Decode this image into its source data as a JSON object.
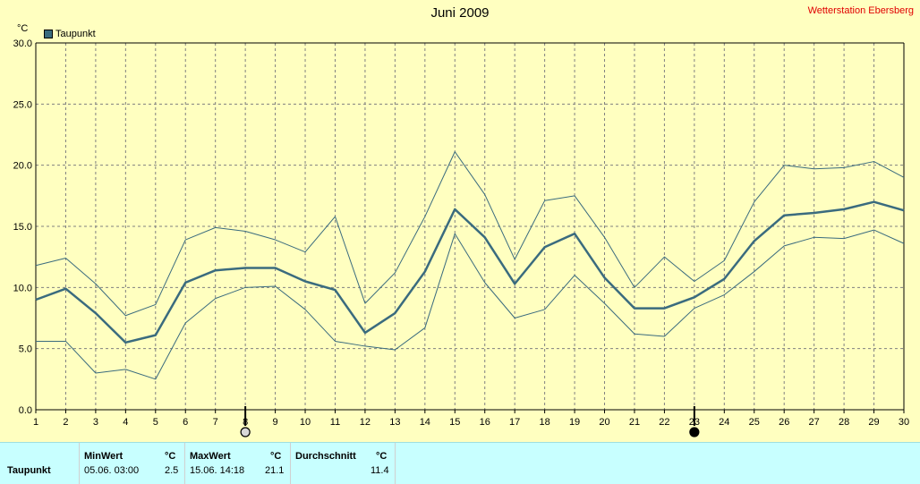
{
  "header": {
    "title": "Juni 2009",
    "station": "Wetterstation Ebersberg",
    "unit": "°C"
  },
  "chart_data": {
    "type": "line",
    "title": "Juni 2009",
    "ylabel": "°C",
    "ylim": [
      0,
      30
    ],
    "xlim": [
      1,
      30
    ],
    "yticks": [
      "0.0",
      "5.0",
      "10.0",
      "15.0",
      "20.0",
      "25.0",
      "30.0"
    ],
    "ytick_values": [
      0,
      5,
      10,
      15,
      20,
      25,
      30
    ],
    "x": [
      1,
      2,
      3,
      4,
      5,
      6,
      7,
      8,
      9,
      10,
      11,
      12,
      13,
      14,
      15,
      16,
      17,
      18,
      19,
      20,
      21,
      22,
      23,
      24,
      25,
      26,
      27,
      28,
      29,
      30
    ],
    "grid": true,
    "legend": "top-left",
    "series": [
      {
        "name": "Taupunkt",
        "role": "mean",
        "color": "#3a6b7e",
        "values": [
          9.0,
          9.9,
          7.9,
          5.5,
          6.1,
          10.4,
          11.4,
          11.6,
          11.6,
          10.5,
          9.8,
          6.3,
          7.9,
          11.3,
          16.4,
          14.1,
          10.3,
          13.3,
          14.4,
          10.8,
          8.3,
          8.3,
          9.2,
          10.7,
          13.8,
          15.9,
          16.1,
          16.4,
          17.0,
          16.3
        ]
      },
      {
        "role": "max",
        "color": "#3a6b7e",
        "values": [
          11.8,
          12.4,
          10.3,
          7.7,
          8.6,
          13.9,
          14.9,
          14.6,
          13.9,
          12.9,
          15.8,
          8.7,
          11.2,
          15.8,
          21.1,
          17.6,
          12.3,
          17.1,
          17.5,
          14.1,
          10.0,
          12.5,
          10.5,
          12.2,
          17.0,
          20.0,
          19.7,
          19.8,
          20.3,
          19.0
        ]
      },
      {
        "role": "min",
        "color": "#3a6b7e",
        "values": [
          5.6,
          5.6,
          3.0,
          3.3,
          2.5,
          7.1,
          9.1,
          10.0,
          10.1,
          8.2,
          5.6,
          5.2,
          4.9,
          6.7,
          14.4,
          10.4,
          7.5,
          8.2,
          11.0,
          8.7,
          6.2,
          6.0,
          8.3,
          9.4,
          11.3,
          13.4,
          14.1,
          14.0,
          14.7,
          13.6
        ]
      }
    ],
    "markers": [
      {
        "x": 8,
        "type": "full-moon-icon"
      },
      {
        "x": 23,
        "type": "new-moon-icon"
      }
    ]
  },
  "stats": {
    "minwert_label": "MinWert",
    "maxwert_label": "MaxWert",
    "avg_label": "Durchschnitt",
    "unit": "°C",
    "row_label": "Taupunkt",
    "min_time": "05.06.  03:00",
    "min_value": "2.5",
    "max_time": "15.06.  14:18",
    "max_value": "21.1",
    "avg_value": "11.4"
  }
}
